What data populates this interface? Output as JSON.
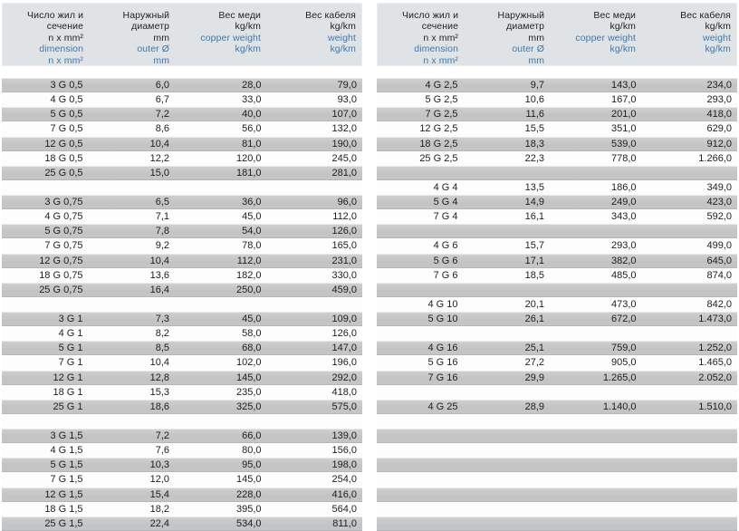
{
  "header": {
    "dimension": [
      "Число жил и",
      "сечение",
      "n x mm²"
    ],
    "dimension_en": [
      "dimension",
      "n x mm²"
    ],
    "outer": [
      "Наружный",
      "диаметр",
      "mm"
    ],
    "outer_en": [
      "outer Ø",
      "mm"
    ],
    "copper": [
      "Вес меди",
      "kg/km"
    ],
    "copper_en": [
      "copper weight",
      "kg/km"
    ],
    "cable": [
      "Вес кабеля",
      "kg/km"
    ],
    "cable_en": [
      "weight",
      "kg/km"
    ]
  },
  "columns": [
    "dimension n x mm²",
    "outer diameter mm",
    "copper weight kg/km",
    "cable weight kg/km"
  ],
  "left_table": {
    "rows": [
      [
        "3 G 0,5",
        "6,0",
        "28,0",
        "79,0"
      ],
      [
        "4 G 0,5",
        "6,7",
        "33,0",
        "93,0"
      ],
      [
        "5 G 0,5",
        "7,2",
        "40,0",
        "107,0"
      ],
      [
        "7 G 0,5",
        "8,6",
        "56,0",
        "132,0"
      ],
      [
        "12 G 0,5",
        "10,4",
        "81,0",
        "190,0"
      ],
      [
        "18 G 0,5",
        "12,2",
        "120,0",
        "245,0"
      ],
      [
        "25 G 0,5",
        "15,0",
        "181,0",
        "281,0"
      ],
      [
        "",
        "",
        "",
        ""
      ],
      [
        "3 G 0,75",
        "6,5",
        "36,0",
        "96,0"
      ],
      [
        "4 G 0,75",
        "7,1",
        "45,0",
        "112,0"
      ],
      [
        "5 G 0,75",
        "7,8",
        "54,0",
        "126,0"
      ],
      [
        "7 G 0,75",
        "9,2",
        "78,0",
        "165,0"
      ],
      [
        "12 G 0,75",
        "10,4",
        "112,0",
        "231,0"
      ],
      [
        "18 G 0,75",
        "13,6",
        "182,0",
        "330,0"
      ],
      [
        "25 G 0,75",
        "16,4",
        "250,0",
        "459,0"
      ],
      [
        "",
        "",
        "",
        ""
      ],
      [
        "3 G 1",
        "7,3",
        "45,0",
        "109,0"
      ],
      [
        "4 G 1",
        "8,2",
        "58,0",
        "126,0"
      ],
      [
        "5 G 1",
        "8,5",
        "68,0",
        "147,0"
      ],
      [
        "7 G 1",
        "10,4",
        "102,0",
        "196,0"
      ],
      [
        "12 G 1",
        "12,8",
        "145,0",
        "292,0"
      ],
      [
        "18 G 1",
        "15,3",
        "235,0",
        "418,0"
      ],
      [
        "25 G 1",
        "18,6",
        "325,0",
        "575,0"
      ],
      [
        "",
        "",
        "",
        ""
      ],
      [
        "3 G 1,5",
        "7,2",
        "66,0",
        "139,0"
      ],
      [
        "4 G 1,5",
        "7,6",
        "80,0",
        "156,0"
      ],
      [
        "5 G 1,5",
        "10,3",
        "95,0",
        "198,0"
      ],
      [
        "7 G 1,5",
        "12,0",
        "145,0",
        "254,0"
      ],
      [
        "12 G 1,5",
        "15,4",
        "228,0",
        "416,0"
      ],
      [
        "18 G 1,5",
        "18,2",
        "395,0",
        "564,0"
      ],
      [
        "25 G 1,5",
        "22,4",
        "534,0",
        "811,0"
      ]
    ]
  },
  "right_table": {
    "rows": [
      [
        "4 G 2,5",
        "9,7",
        "143,0",
        "234,0"
      ],
      [
        "5 G 2,5",
        "10,6",
        "167,0",
        "293,0"
      ],
      [
        "7 G 2,5",
        "11,6",
        "201,0",
        "418,0"
      ],
      [
        "12 G 2,5",
        "15,5",
        "351,0",
        "629,0"
      ],
      [
        "18 G 2,5",
        "18,3",
        "539,0",
        "912,0"
      ],
      [
        "25 G 2,5",
        "22,3",
        "778,0",
        "1.266,0"
      ],
      [
        "",
        "",
        "",
        ""
      ],
      [
        "4 G 4",
        "13,5",
        "186,0",
        "349,0"
      ],
      [
        "5 G 4",
        "14,9",
        "249,0",
        "423,0"
      ],
      [
        "7 G 4",
        "16,1",
        "343,0",
        "592,0"
      ],
      [
        "",
        "",
        "",
        ""
      ],
      [
        "4 G 6",
        "15,7",
        "293,0",
        "499,0"
      ],
      [
        "5 G 6",
        "17,1",
        "382,0",
        "645,0"
      ],
      [
        "7 G 6",
        "18,5",
        "485,0",
        "874,0"
      ],
      [
        "",
        "",
        "",
        ""
      ],
      [
        "4 G 10",
        "20,1",
        "473,0",
        "842,0"
      ],
      [
        "5 G 10",
        "26,1",
        "672,0",
        "1.473,0"
      ],
      [
        "",
        "",
        "",
        ""
      ],
      [
        "4 G 16",
        "25,1",
        "759,0",
        "1.252,0"
      ],
      [
        "5 G 16",
        "27,2",
        "905,0",
        "1.465,0"
      ],
      [
        "7 G 16",
        "29,9",
        "1.265,0",
        "2.052,0"
      ],
      [
        "",
        "",
        "",
        ""
      ],
      [
        "4 G 25",
        "28,9",
        "1.140,0",
        "1.510,0"
      ],
      [
        "",
        "",
        "",
        ""
      ],
      [
        "",
        "",
        "",
        ""
      ],
      [
        "",
        "",
        "",
        ""
      ],
      [
        "",
        "",
        "",
        ""
      ],
      [
        "",
        "",
        "",
        ""
      ],
      [
        "",
        "",
        "",
        ""
      ],
      [
        "",
        "",
        "",
        ""
      ],
      [
        "",
        "",
        "",
        ""
      ]
    ]
  },
  "colors": {
    "accent_blue": "#3f78ad",
    "row_gray": "#c4c6c8",
    "header_bg": "#e0e3e5"
  }
}
